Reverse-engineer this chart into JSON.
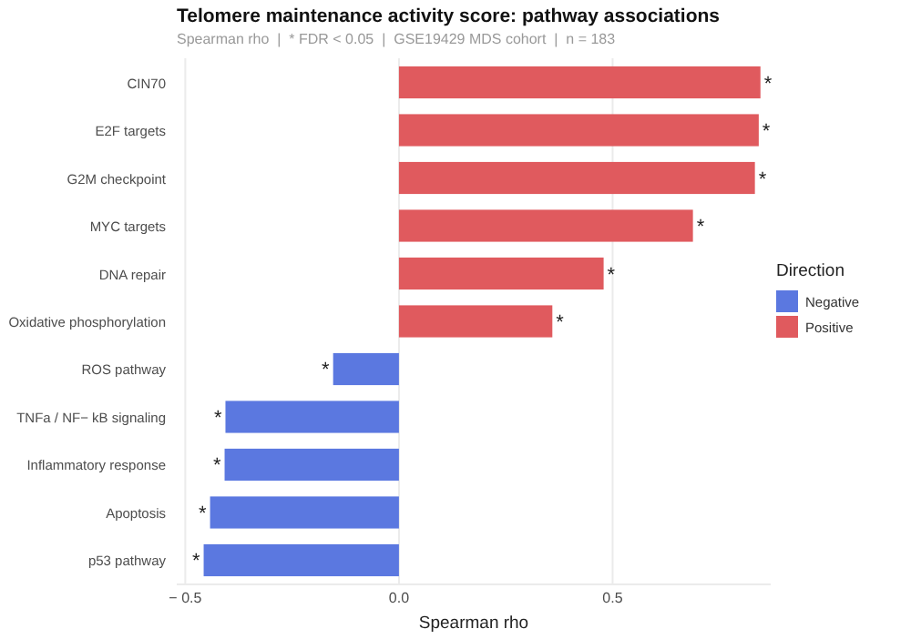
{
  "chart_data": {
    "type": "bar",
    "orientation": "horizontal",
    "title": "Telomere maintenance activity score: pathway associations",
    "subtitle": "Spearman rho  |  * FDR < 0.05  |  GSE19429 MDS cohort  |  n = 183",
    "xlabel": "Spearman rho",
    "legend_title": "Direction",
    "legend": "right",
    "grid": "x",
    "categories": [
      "CIN70",
      "E2F targets",
      "G2M checkpoint",
      "MYC targets",
      "DNA repair",
      "Oxidative phosphorylation",
      "ROS pathway",
      "TNFa / NF− kB signaling",
      "Inflammatory response",
      "Apoptosis",
      "p53 pathway"
    ],
    "xlim": [
      -0.52,
      0.87
    ],
    "xticks": [
      {
        "value": -0.5,
        "label": "− 0.5"
      },
      {
        "value": 0,
        "label": "0.0"
      },
      {
        "value": 0.5,
        "label": "0.5"
      }
    ],
    "series": [
      {
        "name": "Negative",
        "color": "#5b78e0",
        "values": [
          null,
          null,
          null,
          null,
          null,
          null,
          -0.154,
          -0.406,
          -0.408,
          -0.442,
          -0.457
        ],
        "value_labels": [
          null,
          null,
          null,
          null,
          null,
          null,
          "*",
          "*",
          "*",
          "*",
          "*"
        ]
      },
      {
        "name": "Positive",
        "color": "#e05a5e",
        "values": [
          0.846,
          0.842,
          0.833,
          0.688,
          0.479,
          0.359,
          null,
          null,
          null,
          null,
          null
        ],
        "value_labels": [
          "*",
          "*",
          "*",
          "*",
          "*",
          "*",
          null,
          null,
          null,
          null,
          null
        ]
      }
    ]
  }
}
